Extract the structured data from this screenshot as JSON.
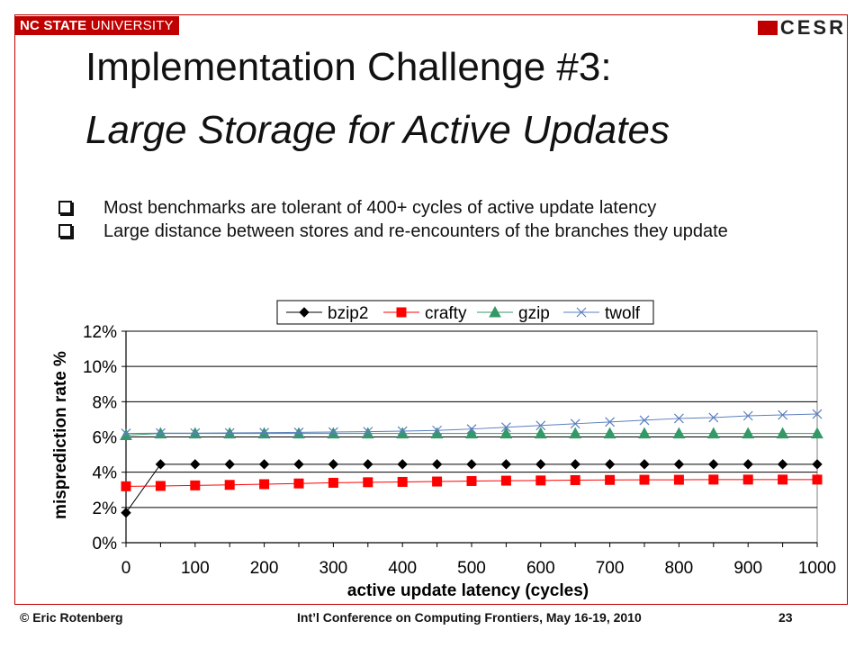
{
  "header": {
    "univ_bold": "NC STATE",
    "univ_rest": "UNIVERSITY",
    "logo_text": "CESR"
  },
  "title": {
    "line1": "Implementation Challenge #3:",
    "line2": "Large Storage for Active Updates"
  },
  "bullets": [
    "Most benchmarks are tolerant of 400+ cycles of active update latency",
    "Large distance between stores and re-encounters of the branches they update"
  ],
  "footer": {
    "left": "© Eric Rotenberg",
    "center": "Int’l Conference on Computing Frontiers, May 16-19, 2010",
    "right": "23"
  },
  "colors": {
    "accent": "#c00000",
    "bzip2": "#000000",
    "crafty": "#ff0000",
    "gzip": "#339966",
    "twolf": "#5b7fbf"
  },
  "chart_data": {
    "type": "line",
    "xlabel": "active update latency (cycles)",
    "ylabel": "misprediction rate %",
    "x": [
      0,
      50,
      100,
      150,
      200,
      250,
      300,
      350,
      400,
      450,
      500,
      550,
      600,
      650,
      700,
      750,
      800,
      850,
      900,
      950,
      1000
    ],
    "xticks": [
      "0",
      "100",
      "200",
      "300",
      "400",
      "500",
      "600",
      "700",
      "800",
      "900",
      "1000"
    ],
    "yticks": [
      "0%",
      "2%",
      "4%",
      "6%",
      "8%",
      "10%",
      "12%"
    ],
    "xlim": [
      0,
      1000
    ],
    "ylim": [
      0,
      12
    ],
    "grid": "horizontal",
    "legend_position": "top",
    "series": [
      {
        "name": "bzip2",
        "marker": "diamond",
        "values": [
          1.7,
          4.45,
          4.45,
          4.45,
          4.45,
          4.45,
          4.45,
          4.45,
          4.45,
          4.45,
          4.45,
          4.45,
          4.45,
          4.45,
          4.45,
          4.45,
          4.45,
          4.45,
          4.45,
          4.45,
          4.45
        ]
      },
      {
        "name": "crafty",
        "marker": "square",
        "values": [
          3.2,
          3.22,
          3.25,
          3.28,
          3.32,
          3.36,
          3.4,
          3.43,
          3.45,
          3.47,
          3.5,
          3.52,
          3.53,
          3.55,
          3.56,
          3.57,
          3.57,
          3.58,
          3.58,
          3.58,
          3.58
        ]
      },
      {
        "name": "gzip",
        "marker": "triangle",
        "values": [
          6.1,
          6.2,
          6.2,
          6.2,
          6.2,
          6.2,
          6.2,
          6.2,
          6.2,
          6.2,
          6.2,
          6.2,
          6.2,
          6.2,
          6.2,
          6.2,
          6.2,
          6.2,
          6.2,
          6.2,
          6.2
        ]
      },
      {
        "name": "twolf",
        "marker": "x",
        "values": [
          6.2,
          6.22,
          6.22,
          6.23,
          6.24,
          6.26,
          6.28,
          6.3,
          6.33,
          6.37,
          6.45,
          6.55,
          6.65,
          6.75,
          6.85,
          6.95,
          7.05,
          7.1,
          7.2,
          7.25,
          7.3
        ]
      }
    ]
  }
}
